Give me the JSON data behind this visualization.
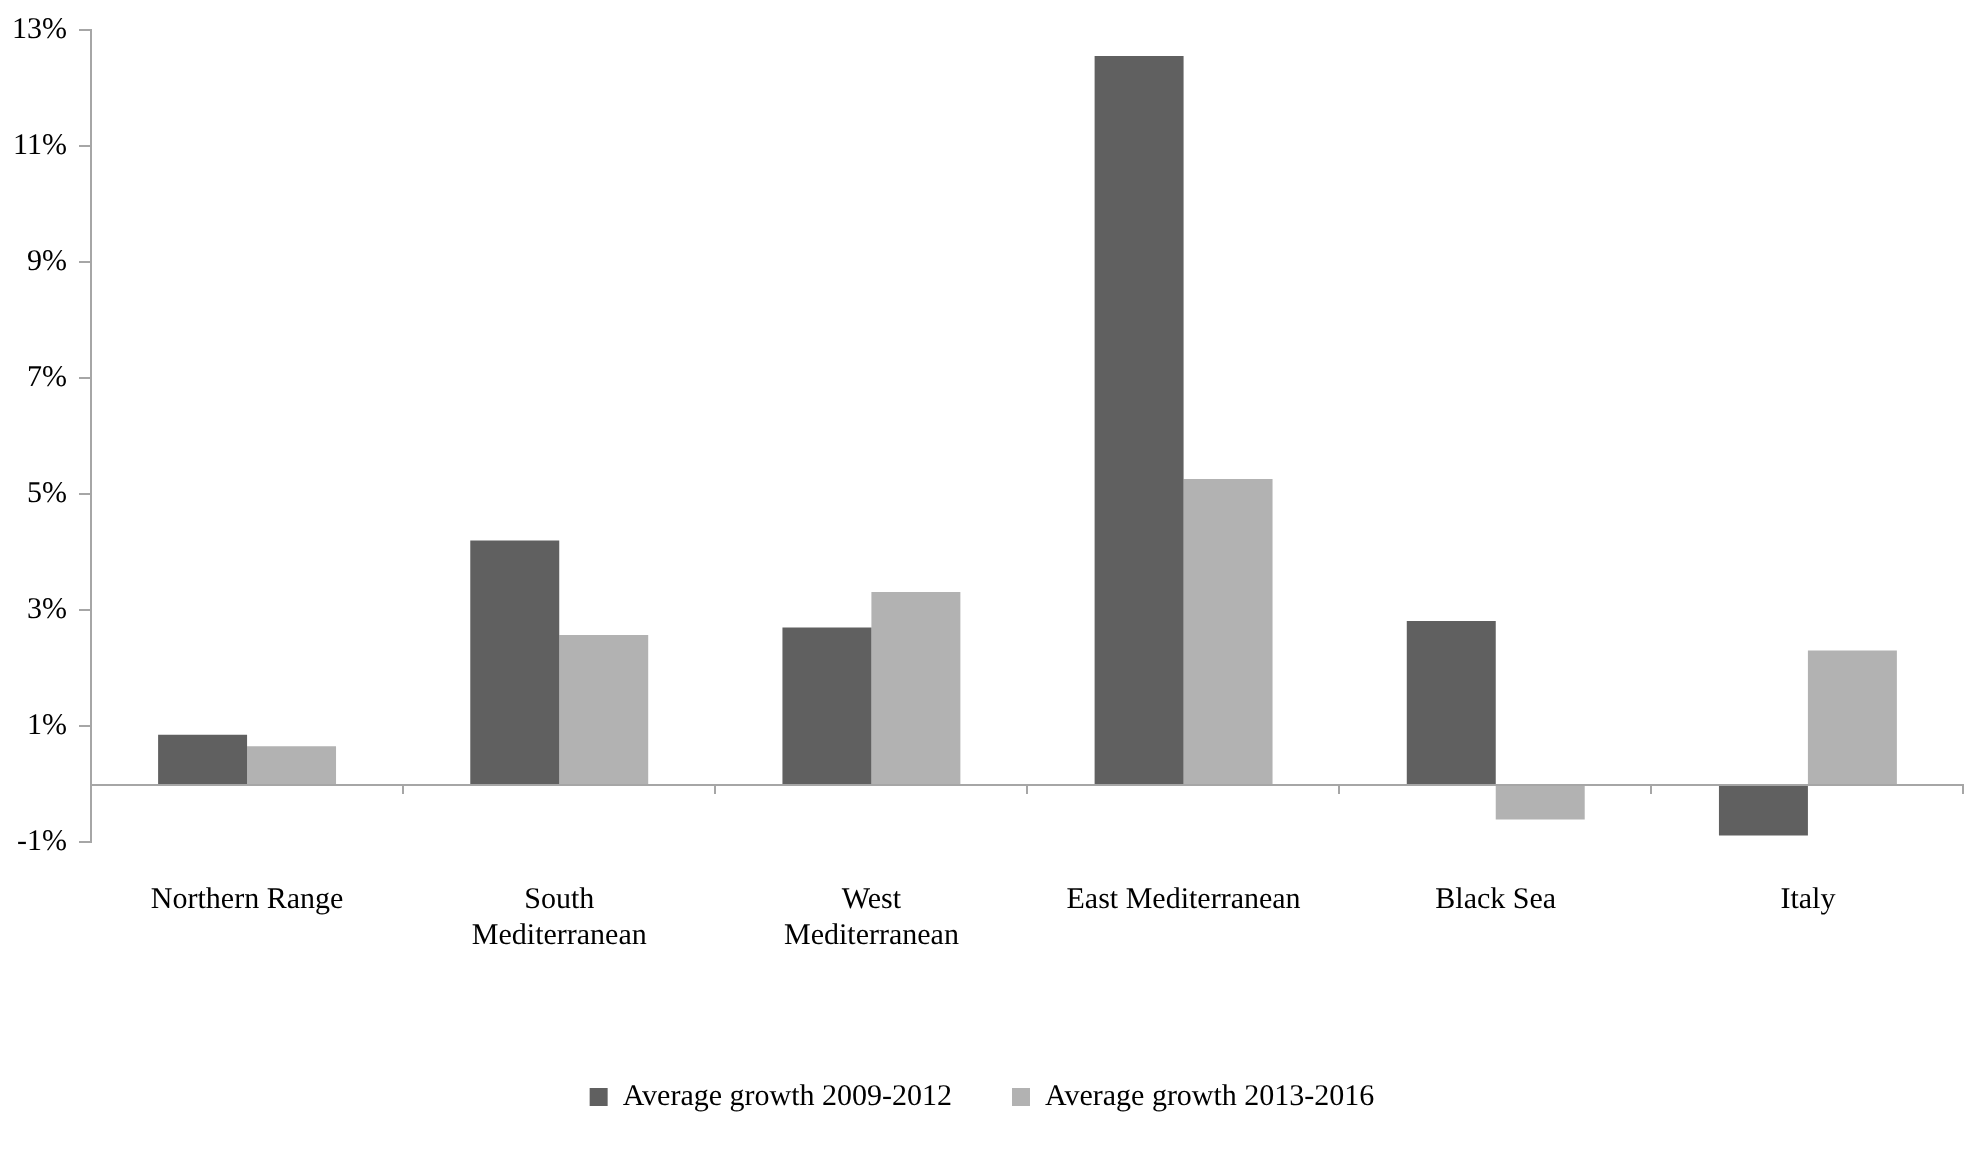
{
  "chart_data": {
    "type": "bar",
    "categories": [
      "Northern Range",
      "South\nMediterranean",
      "West\nMediterranean",
      "East Mediterranean",
      "Black Sea",
      "Italy"
    ],
    "series": [
      {
        "name": "Average growth 2009-2012",
        "color": "#606060",
        "values": [
          0.85,
          4.2,
          2.7,
          12.55,
          2.81,
          -0.89
        ]
      },
      {
        "name": "Average growth 2013-2016",
        "color": "#b2b2b2",
        "values": [
          0.65,
          2.57,
          3.31,
          5.26,
          -0.61,
          2.3
        ]
      }
    ],
    "ylim": [
      -1,
      13
    ],
    "yticks": [
      {
        "value": -1,
        "label": "-1%"
      },
      {
        "value": 1,
        "label": "1%"
      },
      {
        "value": 3,
        "label": "3%"
      },
      {
        "value": 5,
        "label": "5%"
      },
      {
        "value": 7,
        "label": "7%"
      },
      {
        "value": 9,
        "label": "9%"
      },
      {
        "value": 11,
        "label": "11%"
      },
      {
        "value": 13,
        "label": "13%"
      }
    ],
    "grid": false,
    "legend": "bottom"
  }
}
